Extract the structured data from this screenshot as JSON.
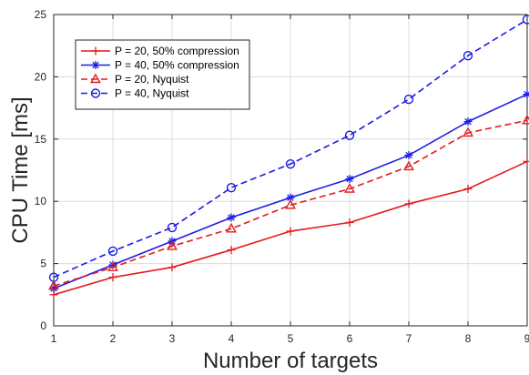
{
  "chart_data": {
    "type": "line",
    "title": "",
    "xlabel": "Number of targets",
    "ylabel": "CPU Time [ms]",
    "x": [
      1,
      2,
      3,
      4,
      5,
      6,
      7,
      8,
      9
    ],
    "xlim": [
      1,
      9
    ],
    "ylim": [
      0,
      25
    ],
    "xticks": [
      "1",
      "2",
      "3",
      "4",
      "5",
      "6",
      "7",
      "8",
      "9"
    ],
    "yticks": [
      "0",
      "5",
      "10",
      "15",
      "20",
      "25"
    ],
    "grid": true,
    "legend_position": "top-left",
    "series": [
      {
        "name": "P = 20, 50% compression",
        "values": [
          2.5,
          3.9,
          4.7,
          6.1,
          7.6,
          8.3,
          9.8,
          11.0,
          13.2
        ],
        "color": "#e41a1c",
        "line": "solid",
        "marker": "plus"
      },
      {
        "name": "P = 40, 50% compression",
        "values": [
          3.0,
          4.9,
          6.8,
          8.7,
          10.3,
          11.8,
          13.7,
          16.4,
          18.6
        ],
        "color": "#1c1ce6",
        "line": "solid",
        "marker": "asterisk"
      },
      {
        "name": "P = 20, Nyquist",
        "values": [
          3.2,
          4.7,
          6.4,
          7.8,
          9.7,
          11.0,
          12.8,
          15.5,
          16.5
        ],
        "color": "#e41a1c",
        "line": "dashed",
        "marker": "triangle"
      },
      {
        "name": "P = 40, Nyquist",
        "values": [
          3.9,
          6.0,
          7.9,
          11.1,
          13.0,
          15.3,
          18.2,
          21.7,
          24.6
        ],
        "color": "#1c1ce6",
        "line": "dashed",
        "marker": "circle"
      }
    ]
  }
}
